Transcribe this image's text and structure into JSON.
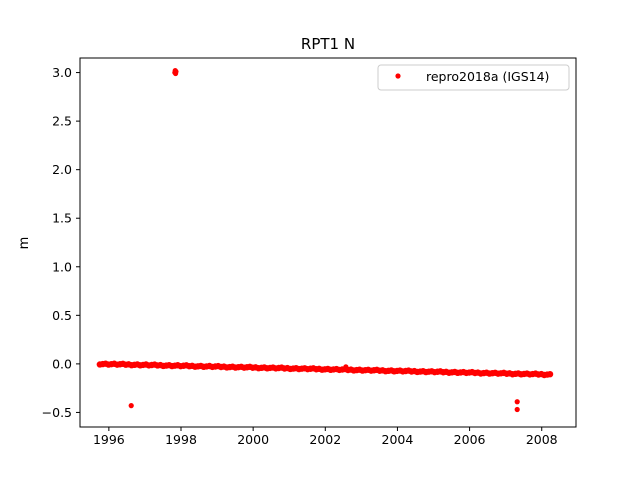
{
  "chart_data": {
    "type": "scatter",
    "title": "RPT1 N",
    "xlabel": "",
    "ylabel": "m",
    "xlim": [
      1995.2,
      2008.95
    ],
    "ylim": [
      -0.65,
      3.15
    ],
    "x_ticks": [
      {
        "value": 1996,
        "label": "1996"
      },
      {
        "value": 1998,
        "label": "1998"
      },
      {
        "value": 2000,
        "label": "2000"
      },
      {
        "value": 2002,
        "label": "2002"
      },
      {
        "value": 2004,
        "label": "2004"
      },
      {
        "value": 2006,
        "label": "2006"
      },
      {
        "value": 2008,
        "label": "2008"
      }
    ],
    "y_ticks": [
      {
        "value": -0.5,
        "label": "−0.5"
      },
      {
        "value": 0.0,
        "label": "0.0"
      },
      {
        "value": 0.5,
        "label": "0.5"
      },
      {
        "value": 1.0,
        "label": "1.0"
      },
      {
        "value": 1.5,
        "label": "1.5"
      },
      {
        "value": 2.0,
        "label": "2.0"
      },
      {
        "value": 2.5,
        "label": "2.5"
      },
      {
        "value": 3.0,
        "label": "3.0"
      }
    ],
    "grid": false,
    "legend_position": "top-right",
    "series": [
      {
        "name": "repro2018a (IGS14)",
        "color": "#ff0000",
        "marker": "circle",
        "trend_band": {
          "x": [
            1995.75,
            2008.25
          ],
          "y": [
            0.0,
            -0.11
          ],
          "sampling_years": 0.08
        },
        "points": [
          {
            "x": 1996.62,
            "y": -0.43
          },
          {
            "x": 1997.83,
            "y": 3.0
          },
          {
            "x": 1997.84,
            "y": 3.02
          },
          {
            "x": 1997.86,
            "y": 3.01
          },
          {
            "x": 1997.85,
            "y": 2.99
          },
          {
            "x": 2002.57,
            "y": -0.03
          },
          {
            "x": 2007.32,
            "y": -0.39
          },
          {
            "x": 2007.32,
            "y": -0.47
          }
        ]
      }
    ]
  }
}
